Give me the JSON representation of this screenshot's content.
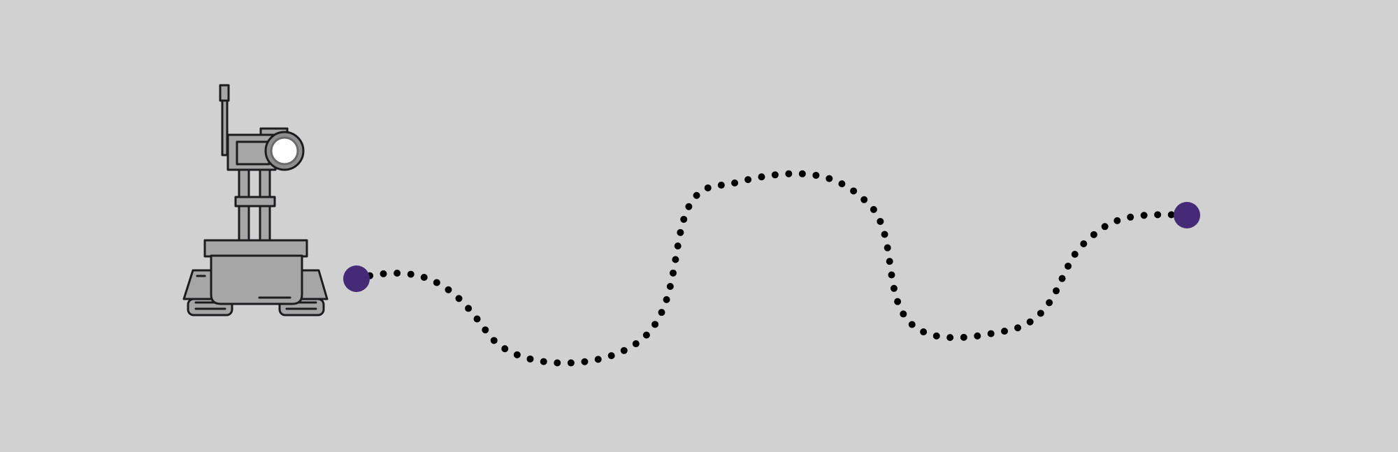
{
  "diagram": {
    "background_color": "#d1d1d1",
    "robot": {
      "icon": "tracked-camera-robot-icon",
      "body_color": "#a6a6a6",
      "outline_color": "#1c1c1e",
      "lens_color": "#ffffff"
    },
    "path": {
      "style": "dotted",
      "dot_color": "#000000"
    },
    "start_point": {
      "color": "#452a78"
    },
    "end_point": {
      "color": "#452a78"
    }
  }
}
